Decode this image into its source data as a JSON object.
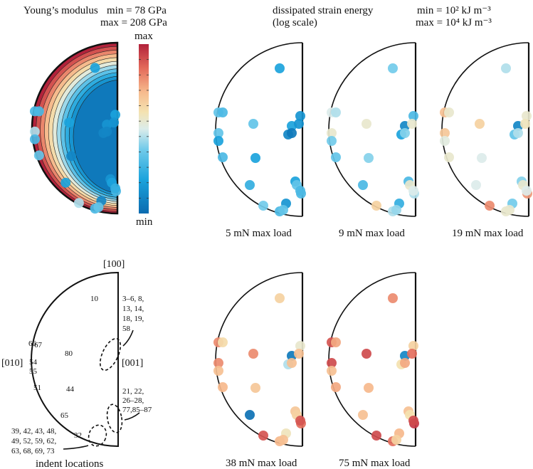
{
  "header": {
    "youngs_title": "Young’s modulus",
    "youngs_min": "min = 78 GPa",
    "youngs_max": "max = 208 GPa",
    "energy_title_1": "dissipated strain energy",
    "energy_title_2": "(log scale)",
    "energy_min": "min = 10² kJ m⁻³",
    "energy_max": "max =  10⁴ kJ m⁻³"
  },
  "colorbar": {
    "max_label": "max",
    "min_label": "min"
  },
  "colors": {
    "min": "#0b6bb0",
    "mid": "#f0eed9",
    "max": "#b2223b",
    "outline": "#111111"
  },
  "indent_map": {
    "title": "indent locations",
    "axis_100": "[100]",
    "axis_010": "[010]",
    "axis_001": "[001]",
    "point_labels": [
      "10",
      "66",
      "67",
      "80",
      "54",
      "55",
      "51",
      "44",
      "65",
      "32"
    ],
    "group_top": [
      "3–6, 8,",
      "13, 14,",
      "18, 19,",
      "58"
    ],
    "group_mid": [
      "21, 22,",
      "26–28,",
      "77,85–87"
    ],
    "group_bottom": [
      "39, 42, 43, 48,",
      "49, 52, 59, 62,",
      "63, 68, 69, 73"
    ]
  },
  "chart_data": {
    "type": "scatter",
    "title": "dissipated strain energy (log scale)",
    "color_scale": {
      "min": "10^2 kJ m^-3",
      "max": "10^4 kJ m^-3",
      "scale": "log"
    },
    "youngs_modulus": {
      "label": "Young’s modulus",
      "min_GPa": 78,
      "max_GPa": 208,
      "indent_values": [
        0.2,
        0.3,
        0.3,
        0.2,
        0.2,
        0.15,
        0.15,
        0.1,
        0.1,
        0.45,
        0.3,
        0.35,
        0.1,
        0.2,
        0.15,
        0.2,
        0.3,
        0.25,
        0.45,
        0.1,
        0.3,
        0.35
      ]
    },
    "panels": [
      {
        "label": "5 mN max load",
        "values": [
          0.2,
          0.35,
          0.3,
          0.35,
          0.15,
          0.2,
          0.15,
          0.1,
          0.05,
          0.35,
          0.2,
          0.3,
          0.2,
          0.25,
          0.2,
          0.35,
          0.3,
          0.3,
          0.38,
          0.15,
          0.3,
          0.35
        ]
      },
      {
        "label": "9 mN max load",
        "values": [
          0.38,
          0.5,
          0.45,
          0.55,
          0.3,
          0.1,
          0.55,
          0.2,
          0.4,
          0.55,
          0.38,
          0.35,
          0.4,
          0.3,
          0.3,
          0.55,
          0.45,
          0.5,
          0.65,
          0.25,
          0.45,
          0.42
        ]
      },
      {
        "label": "19 mN max load",
        "values": [
          0.45,
          0.7,
          0.55,
          0.65,
          0.55,
          0.1,
          0.58,
          0.35,
          0.45,
          0.68,
          0.52,
          0.55,
          0.5,
          0.5,
          0.4,
          0.55,
          0.78,
          0.5,
          0.8,
          0.38,
          0.55,
          0.55
        ]
      },
      {
        "label": "38 mN max load",
        "values": [
          0.65,
          0.8,
          0.62,
          0.8,
          0.55,
          0.05,
          0.7,
          0.45,
          0.7,
          0.8,
          0.7,
          0.72,
          0.68,
          0.02,
          0.68,
          0.65,
          0.85,
          0.9,
          0.9,
          0.58,
          0.72,
          0.7
        ]
      },
      {
        "label": "75 mN max load",
        "values": [
          0.8,
          0.9,
          0.75,
          0.92,
          0.65,
          0.1,
          0.85,
          0.6,
          0.75,
          0.92,
          0.7,
          0.75,
          0.72,
          0.7,
          0.7,
          0.6,
          0.95,
          0.92,
          0.92,
          0.72,
          0.85,
          0.65
        ]
      }
    ]
  }
}
